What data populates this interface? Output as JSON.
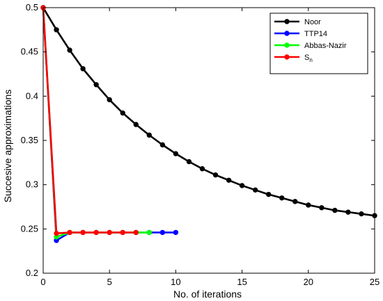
{
  "chart_data": {
    "type": "line",
    "title": "",
    "xlabel": "No. of iterations",
    "ylabel": "Succesive approximations",
    "xlim": [
      0,
      25
    ],
    "ylim": [
      0.2,
      0.5
    ],
    "xticks": [
      0,
      5,
      10,
      15,
      20,
      25
    ],
    "yticks": [
      0.2,
      0.25,
      0.3,
      0.35,
      0.4,
      0.45,
      0.5
    ],
    "grid": false,
    "legend_position": "top-right",
    "series": [
      {
        "name": "Noor",
        "color": "#000000",
        "x": [
          0,
          1,
          2,
          3,
          4,
          5,
          6,
          7,
          8,
          9,
          10,
          11,
          12,
          13,
          14,
          15,
          16,
          17,
          18,
          19,
          20,
          21,
          22,
          23,
          24,
          25
        ],
        "y": [
          0.5,
          0.475,
          0.452,
          0.431,
          0.413,
          0.396,
          0.381,
          0.368,
          0.356,
          0.345,
          0.335,
          0.326,
          0.318,
          0.311,
          0.305,
          0.299,
          0.294,
          0.289,
          0.285,
          0.281,
          0.277,
          0.274,
          0.271,
          0.269,
          0.267,
          0.265
        ]
      },
      {
        "name": "TTP14",
        "color": "#0000ff",
        "x": [
          0,
          1,
          2,
          3,
          4,
          5,
          6,
          7,
          8,
          9,
          10
        ],
        "y": [
          0.5,
          0.237,
          0.246,
          0.246,
          0.246,
          0.246,
          0.246,
          0.246,
          0.246,
          0.246,
          0.246
        ]
      },
      {
        "name": "Abbas-Nazir",
        "color": "#00ff00",
        "x": [
          0,
          1,
          2,
          3,
          4,
          5,
          6,
          7,
          8
        ],
        "y": [
          0.5,
          0.241,
          0.246,
          0.246,
          0.246,
          0.246,
          0.246,
          0.246,
          0.246
        ]
      },
      {
        "name": "S",
        "name_subscript": "n",
        "color": "#ff0000",
        "x": [
          0,
          1,
          2,
          3,
          4,
          5,
          6,
          7
        ],
        "y": [
          0.5,
          0.245,
          0.246,
          0.246,
          0.246,
          0.246,
          0.246,
          0.246
        ]
      }
    ]
  }
}
